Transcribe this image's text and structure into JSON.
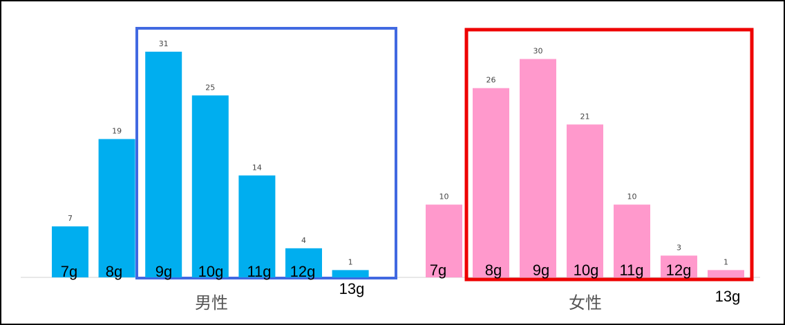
{
  "colors": {
    "male_bar": "#00AEEF",
    "female_bar": "#FF99CC",
    "male_box": "#4169E1",
    "female_box": "#EE0000",
    "baseline": "#d0d0d0"
  },
  "chart_data": [
    {
      "type": "bar",
      "group_label": "男性",
      "categories": [
        "7g",
        "8g",
        "9g",
        "10g",
        "11g",
        "12g",
        "13g"
      ],
      "values": [
        7,
        19,
        31,
        25,
        14,
        4,
        1
      ],
      "highlight_range": [
        "9g",
        "13g"
      ],
      "xlabel": "",
      "ylabel": "",
      "ylim": [
        0,
        31
      ],
      "grid": false
    },
    {
      "type": "bar",
      "group_label": "女性",
      "categories": [
        "7g",
        "8g",
        "9g",
        "10g",
        "11g",
        "12g",
        "13g"
      ],
      "values": [
        10,
        26,
        30,
        21,
        10,
        3,
        1
      ],
      "highlight_range": [
        "8g",
        "13g"
      ],
      "xlabel": "",
      "ylabel": "",
      "ylim": [
        0,
        30
      ],
      "grid": false
    }
  ]
}
